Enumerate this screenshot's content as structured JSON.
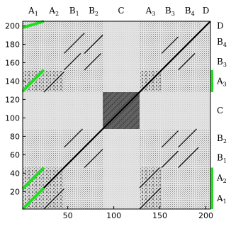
{
  "chart_data": {
    "type": "heatmap",
    "title": "",
    "xlabel": "",
    "ylabel": "",
    "xlim": [
      1,
      205
    ],
    "ylim": [
      1,
      205
    ],
    "x_ticks": [
      50,
      100,
      150,
      200
    ],
    "y_ticks": [
      20,
      40,
      60,
      80,
      100,
      120,
      140,
      160,
      180,
      200
    ],
    "colors": {
      "high": "#000000",
      "low": "#ffffff",
      "highlight": "#22dd22"
    },
    "sections": [
      {
        "base": "A",
        "sub": "1",
        "start": 1,
        "end": 24
      },
      {
        "base": "A",
        "sub": "2",
        "start": 24,
        "end": 46
      },
      {
        "base": "B",
        "sub": "1",
        "start": 46,
        "end": 68
      },
      {
        "base": "B",
        "sub": "2",
        "start": 68,
        "end": 88
      },
      {
        "base": "C",
        "sub": "",
        "start": 88,
        "end": 128
      },
      {
        "base": "A",
        "sub": "3",
        "start": 128,
        "end": 152
      },
      {
        "base": "B",
        "sub": "3",
        "start": 152,
        "end": 170
      },
      {
        "base": "B",
        "sub": "4",
        "start": 170,
        "end": 195
      },
      {
        "base": "D",
        "sub": "",
        "start": 195,
        "end": 205
      }
    ],
    "highlight_segments": [
      {
        "from": [
          1,
          1
        ],
        "to": [
          24,
          24
        ]
      },
      {
        "from": [
          1,
          23
        ],
        "to": [
          24,
          46
        ]
      },
      {
        "from": [
          1,
          129
        ],
        "to": [
          24,
          152
        ]
      },
      {
        "from": [
          1,
          198
        ],
        "to": [
          24,
          205
        ]
      }
    ]
  }
}
